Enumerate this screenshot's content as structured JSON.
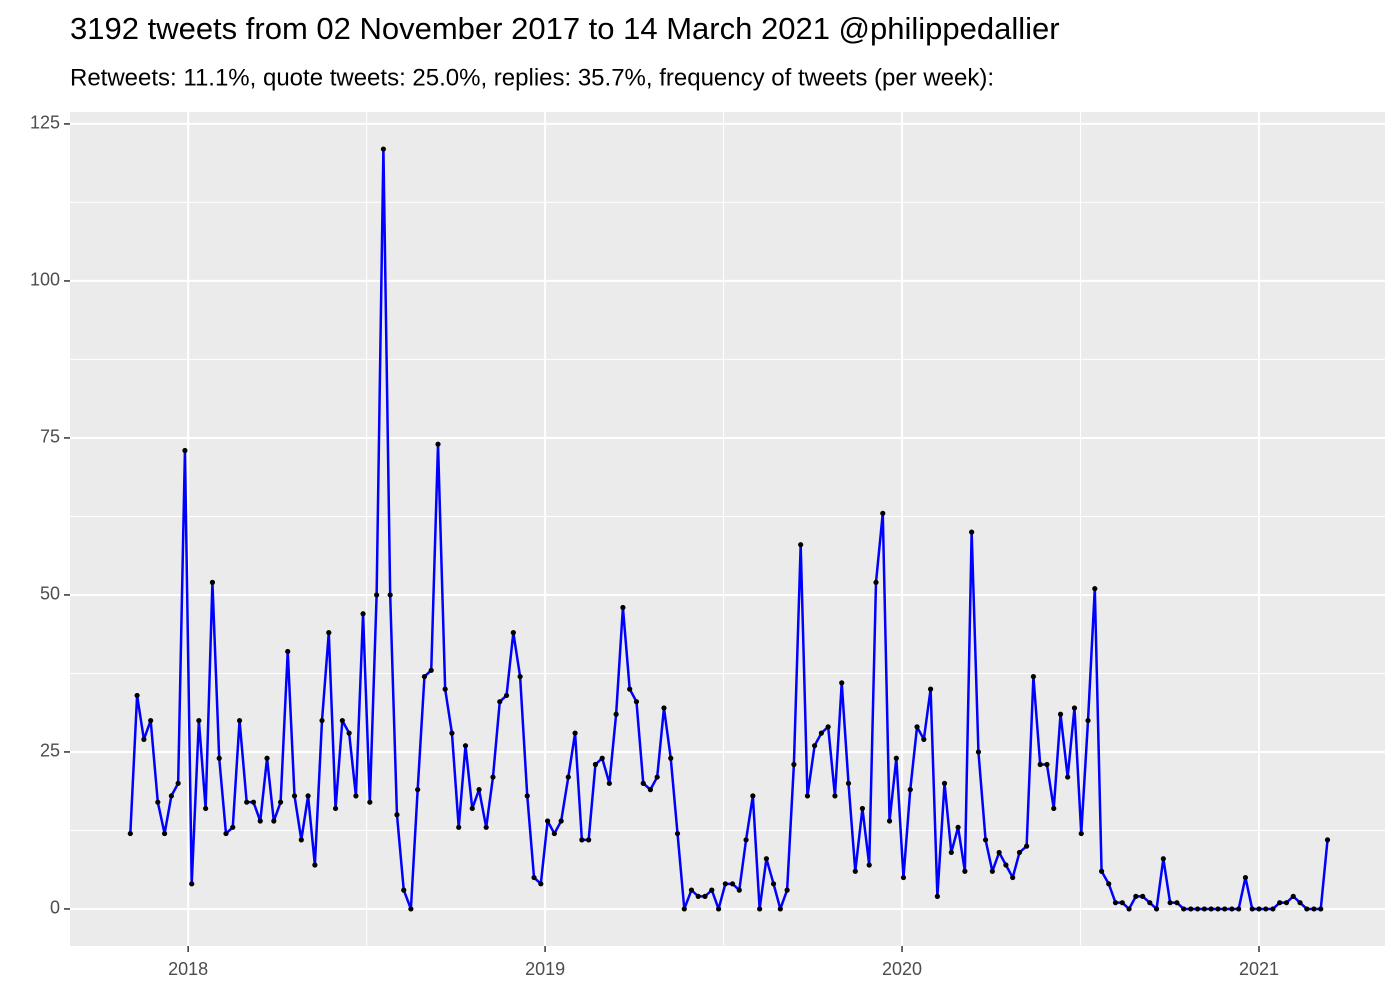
{
  "chart_data": {
    "type": "line",
    "title": "3192 tweets from 02 November 2017 to 14 March 2021 @philippedallier",
    "subtitle": "Retweets: 11.1%, quote tweets: 25.0%, replies: 35.7%, frequency of tweets (per week):",
    "x": [
      2017.838,
      2017.857,
      2017.876,
      2017.895,
      2017.915,
      2017.934,
      2017.953,
      2017.972,
      2017.991,
      2018.01,
      2018.03,
      2018.049,
      2018.068,
      2018.087,
      2018.106,
      2018.125,
      2018.144,
      2018.164,
      2018.183,
      2018.202,
      2018.221,
      2018.24,
      2018.259,
      2018.279,
      2018.298,
      2018.317,
      2018.336,
      2018.355,
      2018.375,
      2018.394,
      2018.413,
      2018.432,
      2018.451,
      2018.47,
      2018.49,
      2018.509,
      2018.528,
      2018.547,
      2018.566,
      2018.585,
      2018.604,
      2018.624,
      2018.643,
      2018.662,
      2018.681,
      2018.7,
      2018.72,
      2018.739,
      2018.758,
      2018.777,
      2018.796,
      2018.815,
      2018.835,
      2018.854,
      2018.873,
      2018.892,
      2018.911,
      2018.93,
      2018.95,
      2018.969,
      2018.988,
      2019.007,
      2019.026,
      2019.045,
      2019.065,
      2019.084,
      2019.103,
      2019.122,
      2019.141,
      2019.16,
      2019.18,
      2019.199,
      2019.218,
      2019.237,
      2019.256,
      2019.275,
      2019.295,
      2019.314,
      2019.333,
      2019.352,
      2019.371,
      2019.39,
      2019.41,
      2019.429,
      2019.448,
      2019.467,
      2019.486,
      2019.505,
      2019.525,
      2019.544,
      2019.563,
      2019.582,
      2019.601,
      2019.62,
      2019.64,
      2019.659,
      2019.678,
      2019.697,
      2019.716,
      2019.735,
      2019.755,
      2019.774,
      2019.793,
      2019.812,
      2019.831,
      2019.85,
      2019.869,
      2019.889,
      2019.908,
      2019.927,
      2019.946,
      2019.965,
      2019.984,
      2020.004,
      2020.023,
      2020.042,
      2020.061,
      2020.08,
      2020.099,
      2020.119,
      2020.138,
      2020.157,
      2020.176,
      2020.195,
      2020.214,
      2020.234,
      2020.253,
      2020.272,
      2020.291,
      2020.31,
      2020.329,
      2020.349,
      2020.368,
      2020.387,
      2020.406,
      2020.425,
      2020.444,
      2020.464,
      2020.483,
      2020.502,
      2020.521,
      2020.54,
      2020.559,
      2020.579,
      2020.598,
      2020.617,
      2020.636,
      2020.655,
      2020.674,
      2020.694,
      2020.713,
      2020.732,
      2020.751,
      2020.77,
      2020.789,
      2020.809,
      2020.828,
      2020.847,
      2020.866,
      2020.885,
      2020.904,
      2020.924,
      2020.943,
      2020.962,
      2020.981,
      2021.0,
      2021.019,
      2021.039,
      2021.058,
      2021.077,
      2021.096,
      2021.115,
      2021.134,
      2021.154,
      2021.173,
      2021.192
    ],
    "series": [
      {
        "color": "#0000ff",
        "point_color": "#000000",
        "values": [
          12,
          34,
          27,
          30,
          17,
          12,
          18,
          20,
          73,
          4,
          30,
          16,
          52,
          24,
          12,
          13,
          30,
          17,
          17,
          14,
          24,
          14,
          17,
          41,
          18,
          11,
          18,
          7,
          30,
          44,
          16,
          30,
          28,
          18,
          47,
          17,
          50,
          121,
          50,
          15,
          3,
          0,
          19,
          37,
          38,
          74,
          35,
          28,
          13,
          26,
          16,
          19,
          13,
          21,
          33,
          34,
          44,
          37,
          18,
          5,
          4,
          14,
          12,
          14,
          21,
          28,
          11,
          11,
          23,
          24,
          20,
          31,
          48,
          35,
          33,
          20,
          19,
          21,
          32,
          24,
          12,
          0,
          3,
          2,
          2,
          3,
          0,
          4,
          4,
          3,
          11,
          18,
          0,
          8,
          4,
          0,
          3,
          23,
          58,
          18,
          26,
          28,
          29,
          18,
          36,
          20,
          6,
          16,
          7,
          52,
          63,
          14,
          24,
          5,
          19,
          29,
          27,
          35,
          2,
          20,
          9,
          13,
          6,
          60,
          25,
          11,
          6,
          9,
          7,
          5,
          9,
          10,
          37,
          23,
          23,
          16,
          31,
          21,
          32,
          12,
          30,
          51,
          6,
          4,
          1,
          1,
          0,
          2,
          2,
          1,
          0,
          8,
          1,
          1,
          0,
          0,
          0,
          0,
          0,
          0,
          0,
          0,
          0,
          5,
          0,
          0,
          0,
          0,
          1,
          1,
          2,
          1,
          0,
          0,
          0,
          11
        ]
      }
    ],
    "xlim": [
      2017.669,
      2021.353
    ],
    "xticks": [
      2018,
      2019,
      2020,
      2021
    ],
    "ylim": [
      -5.9,
      126.9
    ],
    "yticks": [
      0,
      25,
      50,
      75,
      100,
      125
    ],
    "grid": true
  }
}
